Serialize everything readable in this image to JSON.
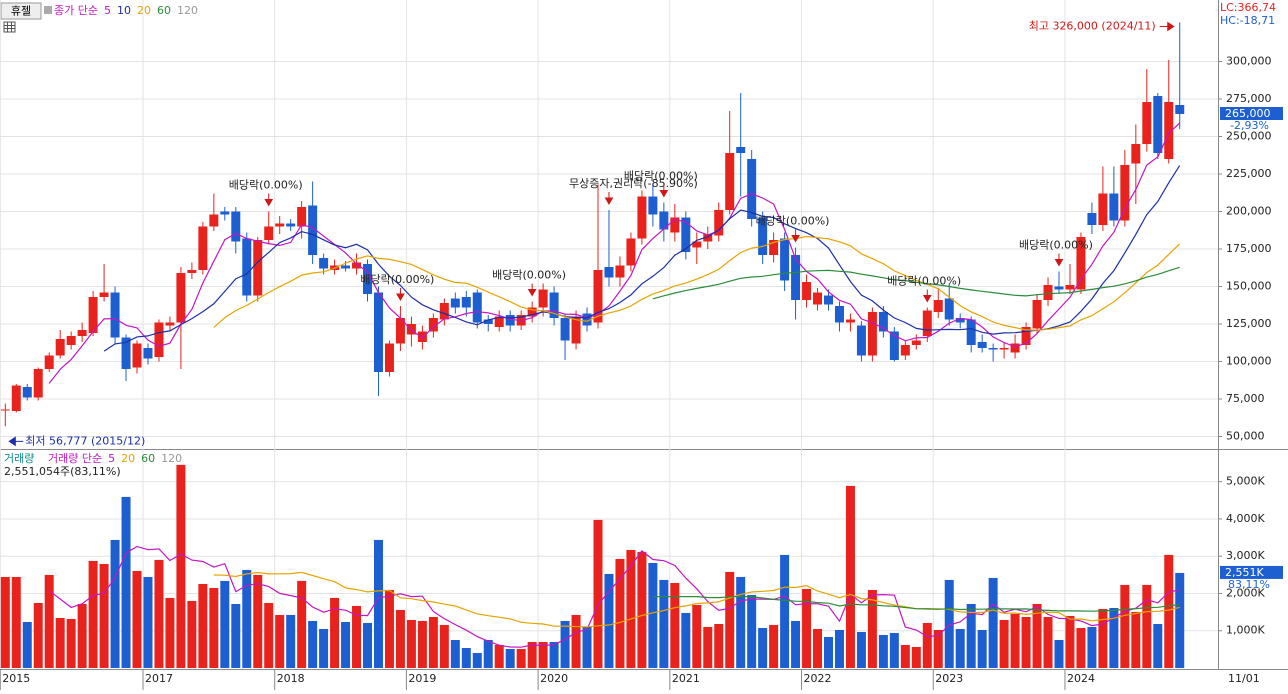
{
  "chart_data": {
    "type": "candlestick",
    "stock": "휴젤",
    "lc": "LC:366,74",
    "hc": "HC:-18,71",
    "ma": {
      "label": "종가 단순",
      "periods": [
        5,
        10,
        20,
        60,
        120
      ],
      "colors": [
        "#c416c4",
        "#1c2fa8",
        "#e6a400",
        "#2b8c3a",
        "#999999"
      ]
    },
    "volume_ma": {
      "label": "거래량 단순",
      "periods": [
        5,
        20,
        60,
        120
      ],
      "colors": [
        "#c416c4",
        "#e6a400",
        "#2b8c3a",
        "#999999"
      ]
    },
    "volume_title": "거래량",
    "volume_info": "2,551,054주(83,11%)",
    "up_color": "#e8231e",
    "down_color": "#1d5fd1",
    "ylim": [
      43000,
      341000
    ],
    "yticks": [
      {
        "value": 50000,
        "label": "50,000"
      },
      {
        "value": 75000,
        "label": "75,000"
      },
      {
        "value": 100000,
        "label": "100,000"
      },
      {
        "value": 125000,
        "label": "125,000"
      },
      {
        "value": 150000,
        "label": "150,000"
      },
      {
        "value": 175000,
        "label": "175,000"
      },
      {
        "value": 200000,
        "label": "200,000"
      },
      {
        "value": 225000,
        "label": "225,000"
      },
      {
        "value": 250000,
        "label": "250,000"
      },
      {
        "value": 275000,
        "label": "275,000"
      },
      {
        "value": 300000,
        "label": "300,000"
      }
    ],
    "vlim": [
      0,
      5850
    ],
    "vticks": [
      {
        "value": 1000,
        "label": "1,000K"
      },
      {
        "value": 2000,
        "label": "2,000K"
      },
      {
        "value": 3000,
        "label": "3,000K"
      },
      {
        "value": 4000,
        "label": "4,000K"
      },
      {
        "value": 5000,
        "label": "5,000K"
      }
    ],
    "xticks": [
      {
        "value": 0,
        "label": "2015"
      },
      {
        "value": 13,
        "label": "2017"
      },
      {
        "value": 25,
        "label": "2018"
      },
      {
        "value": 37,
        "label": "2019"
      },
      {
        "value": 49,
        "label": "2020"
      },
      {
        "value": 61,
        "label": "2021"
      },
      {
        "value": 73,
        "label": "2022"
      },
      {
        "value": 85,
        "label": "2023"
      },
      {
        "value": 97,
        "label": "2024"
      }
    ],
    "date_label": "11/01",
    "last_price": {
      "value": 265000,
      "label": "265,000"
    },
    "change": "-2,93%",
    "last_volume": {
      "value": 2551,
      "label": "2,551K"
    },
    "volume_ratio": "83,11%",
    "high_note": "최고 326,000 (2024/11)",
    "low_note": "최저 56,777 (2015/12)",
    "events": [
      {
        "index": 24,
        "label": "배당락(0.00%)"
      },
      {
        "index": 36,
        "label": "배당락(0.00%)"
      },
      {
        "index": 48,
        "label": "배당락(0.00%)"
      },
      {
        "index": 55,
        "label": "무상증자,권리락(-85.90%)"
      },
      {
        "index": 60,
        "label": "배당락(0.00%)"
      },
      {
        "index": 72,
        "label": "배당락(0.00%)"
      },
      {
        "index": 84,
        "label": "배당락(0.00%)"
      },
      {
        "index": 96,
        "label": "배당락(0.00%)"
      }
    ],
    "candles": [
      [
        68000,
        72000,
        56777,
        68000
      ],
      [
        67000,
        85000,
        66000,
        84000
      ],
      [
        83000,
        85000,
        74000,
        76000
      ],
      [
        76000,
        96000,
        74000,
        95000
      ],
      [
        95000,
        106000,
        93000,
        104000
      ],
      [
        104000,
        121000,
        102000,
        115000
      ],
      [
        111000,
        120000,
        108000,
        117000
      ],
      [
        117000,
        126000,
        113000,
        121000
      ],
      [
        119000,
        147000,
        117000,
        143000
      ],
      [
        143000,
        165000,
        140000,
        146000
      ],
      [
        146000,
        150000,
        112000,
        116000
      ],
      [
        116000,
        118000,
        87000,
        95000
      ],
      [
        96000,
        114000,
        92000,
        112000
      ],
      [
        109000,
        112000,
        98000,
        102000
      ],
      [
        103000,
        128000,
        100000,
        126000
      ],
      [
        124000,
        130000,
        120000,
        126000
      ],
      [
        126000,
        163000,
        95000,
        159000
      ],
      [
        159000,
        166000,
        155000,
        161000
      ],
      [
        161000,
        193000,
        158000,
        190000
      ],
      [
        190000,
        212000,
        187000,
        198000
      ],
      [
        200000,
        203000,
        194000,
        198000
      ],
      [
        200000,
        203000,
        172000,
        180000
      ],
      [
        182000,
        186000,
        140000,
        144000
      ],
      [
        144000,
        183000,
        140000,
        181000
      ],
      [
        181000,
        200000,
        178000,
        190000
      ],
      [
        190000,
        197000,
        185000,
        192000
      ],
      [
        192000,
        195000,
        187000,
        190000
      ],
      [
        190000,
        207000,
        182000,
        203000
      ],
      [
        204000,
        220000,
        165000,
        171000
      ],
      [
        169000,
        172000,
        158000,
        162000
      ],
      [
        161000,
        168000,
        158000,
        164000
      ],
      [
        164000,
        167000,
        160000,
        162000
      ],
      [
        162000,
        172000,
        158000,
        166000
      ],
      [
        165000,
        168000,
        140000,
        145000
      ],
      [
        146000,
        150000,
        77000,
        93000
      ],
      [
        93000,
        114000,
        90000,
        112000
      ],
      [
        112000,
        137000,
        107000,
        129000
      ],
      [
        118000,
        130000,
        110000,
        125000
      ],
      [
        113000,
        124000,
        108000,
        120000
      ],
      [
        120000,
        132000,
        116000,
        129000
      ],
      [
        128000,
        142000,
        124000,
        139000
      ],
      [
        142000,
        146000,
        132000,
        136000
      ],
      [
        143000,
        147000,
        130000,
        136000
      ],
      [
        146000,
        148000,
        122000,
        126000
      ],
      [
        128000,
        131000,
        120000,
        125000
      ],
      [
        123000,
        134000,
        120000,
        130000
      ],
      [
        131000,
        134000,
        120000,
        124000
      ],
      [
        124000,
        134000,
        121000,
        131000
      ],
      [
        130000,
        140000,
        126000,
        136000
      ],
      [
        136000,
        152000,
        130000,
        148000
      ],
      [
        146000,
        150000,
        124000,
        129000
      ],
      [
        129000,
        132000,
        101000,
        114000
      ],
      [
        112000,
        134000,
        108000,
        130000
      ],
      [
        132000,
        136000,
        120000,
        124000
      ],
      [
        126000,
        218000,
        122000,
        161000
      ],
      [
        163000,
        201000,
        150000,
        156000
      ],
      [
        156000,
        170000,
        150000,
        164000
      ],
      [
        164000,
        186000,
        160000,
        182000
      ],
      [
        182000,
        214000,
        178000,
        210000
      ],
      [
        210000,
        219000,
        190000,
        198000
      ],
      [
        200000,
        206000,
        180000,
        188000
      ],
      [
        186000,
        205000,
        180000,
        196000
      ],
      [
        196000,
        200000,
        168000,
        173000
      ],
      [
        176000,
        186000,
        165000,
        180000
      ],
      [
        180000,
        190000,
        175000,
        185000
      ],
      [
        184000,
        206000,
        180000,
        201000
      ],
      [
        201000,
        267000,
        198000,
        239000
      ],
      [
        243000,
        279000,
        210000,
        239000
      ],
      [
        235000,
        241000,
        190000,
        195000
      ],
      [
        196000,
        200000,
        165000,
        171000
      ],
      [
        171000,
        186000,
        166000,
        181000
      ],
      [
        182000,
        186000,
        147000,
        154000
      ],
      [
        171000,
        176000,
        128000,
        141000
      ],
      [
        141000,
        158000,
        136000,
        153000
      ],
      [
        138000,
        149000,
        134000,
        146000
      ],
      [
        144000,
        148000,
        134000,
        138000
      ],
      [
        137000,
        140000,
        120000,
        126000
      ],
      [
        126000,
        132000,
        120000,
        128000
      ],
      [
        124000,
        127000,
        100000,
        104000
      ],
      [
        104000,
        136000,
        100000,
        133000
      ],
      [
        133000,
        137000,
        116000,
        120000
      ],
      [
        120000,
        123000,
        100000,
        101000
      ],
      [
        104000,
        114000,
        101000,
        111000
      ],
      [
        111000,
        118000,
        108000,
        114000
      ],
      [
        117000,
        136000,
        113000,
        134000
      ],
      [
        133000,
        149000,
        129000,
        141000
      ],
      [
        142000,
        152000,
        124000,
        128000
      ],
      [
        129000,
        132000,
        122000,
        126000
      ],
      [
        128000,
        130000,
        106000,
        111000
      ],
      [
        113000,
        118000,
        106000,
        109000
      ],
      [
        109000,
        112000,
        100000,
        108000
      ],
      [
        108000,
        113000,
        102000,
        109000
      ],
      [
        106000,
        118000,
        102000,
        112000
      ],
      [
        111000,
        126000,
        108000,
        123000
      ],
      [
        122000,
        145000,
        119000,
        141000
      ],
      [
        141000,
        156000,
        137000,
        151000
      ],
      [
        150000,
        160000,
        145000,
        148000
      ],
      [
        148000,
        165000,
        145000,
        151000
      ],
      [
        148000,
        186000,
        145000,
        183000
      ],
      [
        199000,
        206000,
        185000,
        191000
      ],
      [
        191000,
        230000,
        187000,
        212000
      ],
      [
        212000,
        230000,
        190000,
        194000
      ],
      [
        194000,
        241000,
        190000,
        231000
      ],
      [
        232000,
        258000,
        205000,
        245000
      ],
      [
        245000,
        295000,
        240000,
        273000
      ],
      [
        277000,
        279000,
        235000,
        239000
      ],
      [
        235000,
        301000,
        232000,
        273000
      ],
      [
        271000,
        326000,
        255000,
        265000
      ]
    ],
    "volume": [
      2443,
      2443,
      1235,
      1745,
      2497,
      1343,
      1316,
      1718,
      2873,
      2792,
      3437,
      4591,
      2604,
      2443,
      2900,
      1880,
      5451,
      1799,
      2255,
      2148,
      2336,
      1718,
      2631,
      2497,
      1745,
      1423,
      1423,
      2336,
      1262,
      1047,
      1880,
      1235,
      1665,
      1208,
      3437,
      2094,
      1557,
      1289,
      1262,
      1369,
      1155,
      752,
      537,
      403,
      752,
      618,
      510,
      510,
      698,
      698,
      698,
      1262,
      1423,
      1101,
      3974,
      2524,
      2927,
      3168,
      3115,
      2819,
      2363,
      2282,
      1477,
      1692,
      1101,
      1181,
      2578,
      2443,
      1960,
      1074,
      1155,
      3034,
      1262,
      2121,
      1047,
      832,
      1020,
      4887,
      967,
      2094,
      886,
      940,
      618,
      564,
      1208,
      1020,
      2363,
      1047,
      1718,
      1020,
      2417,
      1289,
      1450,
      1369,
      1718,
      1369,
      752,
      1396,
      1074,
      1101,
      1584,
      1611,
      2229,
      1504,
      2229,
      1181,
      3034,
      2551
    ]
  }
}
